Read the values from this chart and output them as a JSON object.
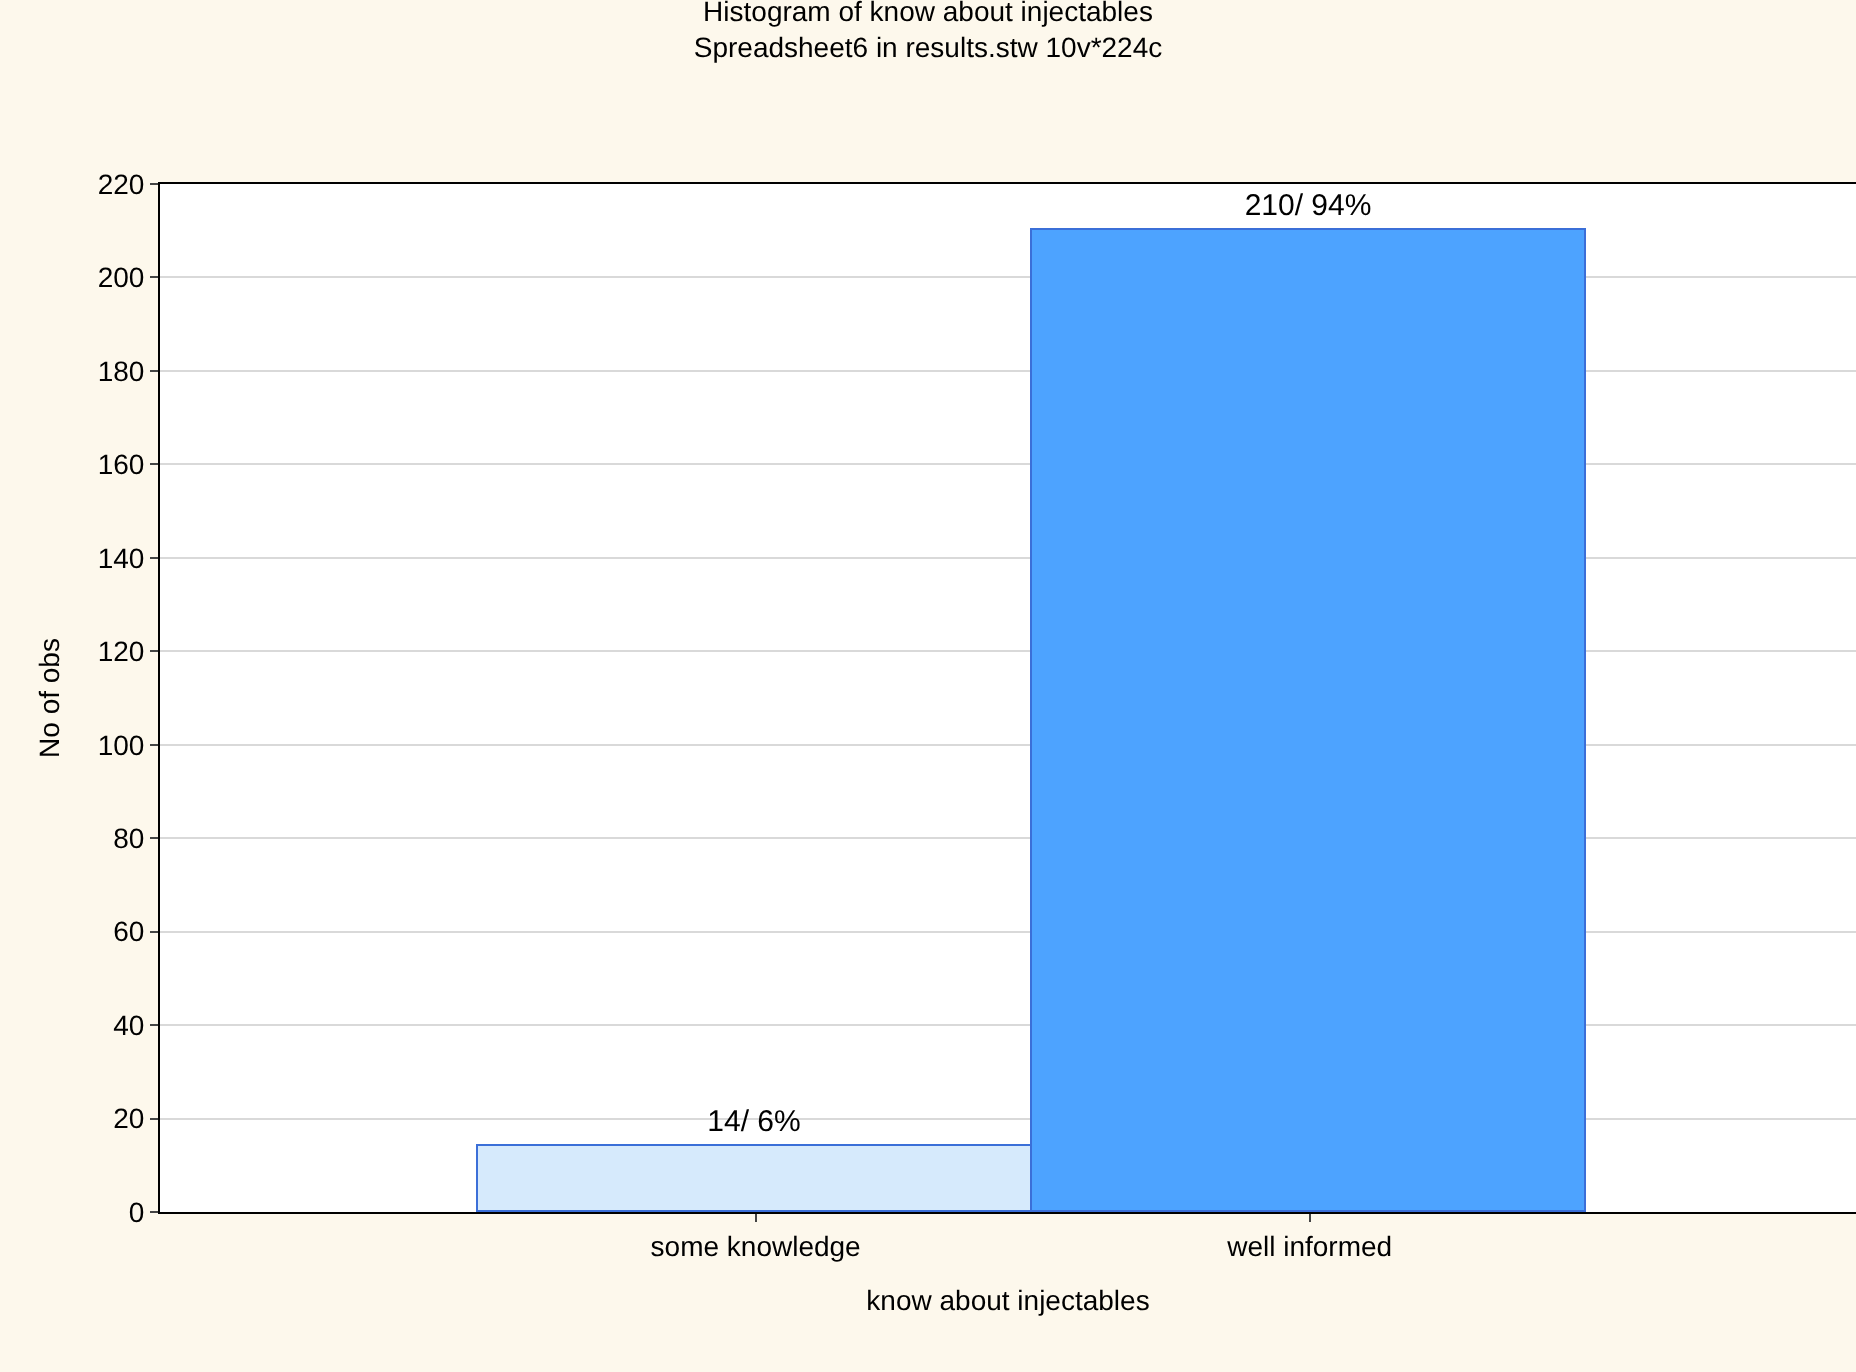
{
  "chart_data": {
    "type": "bar",
    "title": "Histogram of know about injectables",
    "subtitle": "Spreadsheet6 in results.stw 10v*224c",
    "xlabel": "know about injectables",
    "ylabel": "No of obs",
    "categories": [
      "some knowledge",
      "well informed"
    ],
    "values": [
      14,
      210
    ],
    "colors": [
      "#d6eafc",
      "#4da3ff"
    ],
    "value_labels": [
      "14/ 6%",
      "210/ 94%"
    ],
    "ylim": [
      0,
      220
    ],
    "yticks": [
      0,
      20,
      40,
      60,
      80,
      100,
      120,
      140,
      160,
      180,
      200,
      220
    ],
    "grid": "y",
    "legend": false
  }
}
